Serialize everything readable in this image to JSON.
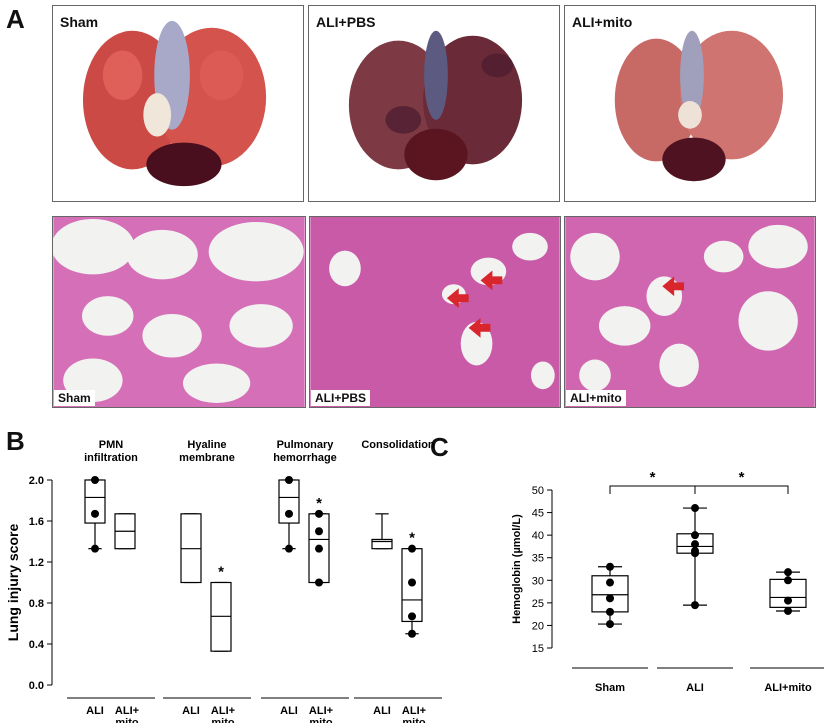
{
  "panel_labels": {
    "a": "A",
    "b": "B",
    "c": "C"
  },
  "gross_photos": [
    {
      "label": "Sham",
      "tint": "#c8463f"
    },
    {
      "label": "ALI+PBS",
      "tint": "#6b2b35"
    },
    {
      "label": "ALI+mito",
      "tint": "#c76a66"
    }
  ],
  "histology": [
    {
      "label": "Sham"
    },
    {
      "label": "ALI+PBS"
    },
    {
      "label": "ALI+mito"
    }
  ],
  "colors": {
    "stain_pink": "#d56fb8",
    "nuclei": "#4b2a8c",
    "arrow": "#d8262c",
    "box": "#000000"
  },
  "chart_data": [
    {
      "type": "box",
      "panel": "B",
      "ylabel": "Lung injury score",
      "ylim": [
        0.0,
        2.0
      ],
      "yticks": [
        "0.0",
        "0.4",
        "0.8",
        "1.2",
        "1.6",
        "2.0"
      ],
      "groups": [
        {
          "title": "PMN infiltration",
          "boxes": [
            {
              "label": "ALI",
              "min": 1.33,
              "q1": 1.58,
              "median": 1.83,
              "q3": 2.0,
              "max": 2.0,
              "points": [
                2.0,
                1.67,
                1.33
              ],
              "sig": ""
            },
            {
              "label": "ALI+ mito",
              "min": 1.33,
              "q1": 1.33,
              "median": 1.5,
              "q3": 1.67,
              "max": 1.67,
              "points": [],
              "sig": ""
            }
          ]
        },
        {
          "title": "Hyaline membrane",
          "boxes": [
            {
              "label": "ALI",
              "min": 1.0,
              "q1": 1.0,
              "median": 1.33,
              "q3": 1.67,
              "max": 1.67,
              "points": [],
              "sig": ""
            },
            {
              "label": "ALI+ mito",
              "min": 0.33,
              "q1": 0.33,
              "median": 0.67,
              "q3": 1.0,
              "max": 1.0,
              "points": [],
              "sig": "*"
            }
          ]
        },
        {
          "title": "Pulmonary hemorrhage",
          "boxes": [
            {
              "label": "ALI",
              "min": 1.33,
              "q1": 1.58,
              "median": 1.83,
              "q3": 2.0,
              "max": 2.0,
              "points": [
                2.0,
                1.67,
                1.33
              ],
              "sig": ""
            },
            {
              "label": "ALI+ mito",
              "min": 1.0,
              "q1": 1.0,
              "median": 1.42,
              "q3": 1.67,
              "max": 1.67,
              "points": [
                1.67,
                1.5,
                1.33,
                1.0
              ],
              "sig": "*"
            }
          ]
        },
        {
          "title": "Consolidation",
          "boxes": [
            {
              "label": "ALI",
              "min": 1.33,
              "q1": 1.33,
              "median": 1.4,
              "q3": 1.42,
              "max": 1.67,
              "points": [],
              "sig": ""
            },
            {
              "label": "ALI+ mito",
              "min": 0.5,
              "q1": 0.62,
              "median": 0.83,
              "q3": 1.33,
              "max": 1.33,
              "points": [
                1.33,
                1.0,
                0.67,
                0.5
              ],
              "sig": "*"
            }
          ]
        }
      ]
    },
    {
      "type": "box",
      "panel": "C",
      "ylabel": "Hemoglobin (µmol/L)",
      "ylim": [
        15,
        50
      ],
      "yticks": [
        "15",
        "20",
        "25",
        "30",
        "35",
        "40",
        "45",
        "50"
      ],
      "categories": [
        "Sham",
        "ALI",
        "ALI+mito"
      ],
      "boxes": [
        {
          "label": "Sham",
          "min": 20.3,
          "q1": 23.0,
          "median": 26.8,
          "q3": 31.0,
          "max": 33.0,
          "points": [
            33.0,
            29.5,
            26.0,
            23.0,
            20.3
          ]
        },
        {
          "label": "ALI",
          "min": 24.5,
          "q1": 36.0,
          "median": 37.5,
          "q3": 40.3,
          "max": 46.0,
          "points": [
            46.0,
            40.0,
            38.0,
            36.5,
            36.0,
            24.5
          ]
        },
        {
          "label": "ALI+mito",
          "min": 23.2,
          "q1": 24.0,
          "median": 26.2,
          "q3": 30.2,
          "max": 31.8,
          "points": [
            31.8,
            30.0,
            25.5,
            23.2
          ]
        }
      ],
      "comparisons": [
        {
          "from": "Sham",
          "to": "ALI",
          "label": "*"
        },
        {
          "from": "ALI",
          "to": "ALI+mito",
          "label": "*"
        }
      ]
    }
  ]
}
